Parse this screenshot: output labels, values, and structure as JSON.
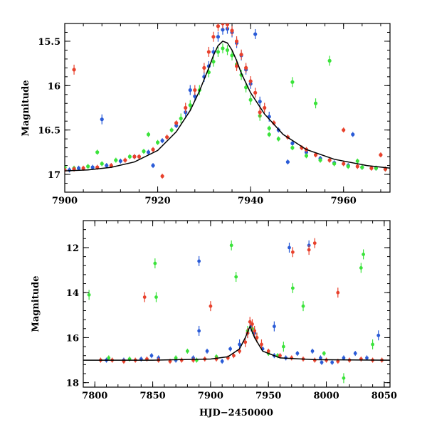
{
  "colors": {
    "B": "#2a5bd7",
    "V": "#3be33b",
    "R": "#e8412c",
    "model": "#000000"
  },
  "chart_data": [
    {
      "type": "scatter",
      "title": "",
      "xlabel": "",
      "ylabel": "Magnitude",
      "xlim": [
        7900,
        7970
      ],
      "ylim": [
        17.2,
        15.3
      ],
      "xticks": [
        7900,
        7920,
        7940,
        7960
      ],
      "xtick_labels": [
        "7900",
        "7920",
        "7940",
        "7960"
      ],
      "yticks": [
        15.5,
        16,
        16.5,
        17
      ],
      "ytick_labels": [
        "15.5",
        "16",
        "16.5",
        "17"
      ],
      "y_inverted": true,
      "grid": false,
      "model": {
        "name": "",
        "x": [
          7900,
          7905,
          7910,
          7915,
          7920,
          7924,
          7927,
          7929,
          7931,
          7932,
          7933,
          7934,
          7935,
          7936,
          7937,
          7938,
          7940,
          7943,
          7947,
          7952,
          7958,
          7965,
          7970
        ],
        "y": [
          16.96,
          16.95,
          16.92,
          16.86,
          16.73,
          16.52,
          16.28,
          16.06,
          15.8,
          15.66,
          15.55,
          15.5,
          15.52,
          15.6,
          15.72,
          15.86,
          16.08,
          16.32,
          16.55,
          16.72,
          16.83,
          16.9,
          16.93
        ]
      },
      "series": [
        {
          "name": "",
          "color": "blue",
          "x": [
            7901,
            7903,
            7906,
            7909,
            7912,
            7915,
            7918,
            7921,
            7924,
            7926,
            7928,
            7930,
            7931,
            7932,
            7933,
            7934,
            7935,
            7936,
            7937,
            7938,
            7939,
            7940,
            7942,
            7944,
            7946,
            7949,
            7952,
            7955,
            7958,
            7961,
            7964,
            7967,
            7969,
            7908,
            7919,
            7927,
            7941,
            7948,
            7962
          ],
          "y": [
            16.95,
            16.93,
            16.92,
            16.9,
            16.85,
            16.8,
            16.75,
            16.62,
            16.45,
            16.3,
            16.12,
            15.9,
            15.78,
            15.62,
            15.45,
            15.37,
            15.36,
            15.4,
            15.52,
            15.66,
            15.82,
            15.98,
            16.18,
            16.35,
            16.5,
            16.65,
            16.75,
            16.82,
            16.87,
            16.9,
            16.92,
            16.93,
            16.94,
            16.38,
            16.9,
            16.05,
            15.42,
            16.86,
            16.55
          ]
        },
        {
          "name": "",
          "color": "green",
          "x": [
            7900,
            7902,
            7905,
            7908,
            7911,
            7914,
            7917,
            7920,
            7923,
            7925,
            7927,
            7929,
            7931,
            7932,
            7933,
            7934,
            7935,
            7936,
            7937,
            7938,
            7939,
            7940,
            7942,
            7944,
            7946,
            7949,
            7952,
            7955,
            7958,
            7961,
            7964,
            7967,
            7969,
            7907,
            7918,
            7944,
            7949,
            7954,
            7957,
            7963
          ],
          "y": [
            16.92,
            16.93,
            16.91,
            16.88,
            16.84,
            16.8,
            16.74,
            16.64,
            16.5,
            16.37,
            16.22,
            16.05,
            15.85,
            15.73,
            15.62,
            15.58,
            15.6,
            15.66,
            15.76,
            15.88,
            16.02,
            16.16,
            16.34,
            16.48,
            16.6,
            16.7,
            16.79,
            16.84,
            16.88,
            16.91,
            16.92,
            16.93,
            16.94,
            16.75,
            16.55,
            16.55,
            15.96,
            16.2,
            15.72,
            16.85
          ]
        },
        {
          "name": "",
          "color": "red",
          "x": [
            7900,
            7902,
            7904,
            7907,
            7910,
            7913,
            7916,
            7919,
            7922,
            7924,
            7926,
            7928,
            7930,
            7931,
            7932,
            7933,
            7934,
            7935,
            7936,
            7937,
            7938,
            7939,
            7940,
            7941,
            7943,
            7945,
            7948,
            7951,
            7954,
            7957,
            7960,
            7963,
            7966,
            7969,
            7902,
            7915,
            7921,
            7937,
            7942,
            7952,
            7960,
            7968
          ],
          "y": [
            16.95,
            16.94,
            16.93,
            16.92,
            16.9,
            16.84,
            16.8,
            16.72,
            16.58,
            16.42,
            16.25,
            16.05,
            15.8,
            15.62,
            15.45,
            15.33,
            15.3,
            15.31,
            15.38,
            15.5,
            15.65,
            15.8,
            15.95,
            16.08,
            16.25,
            16.42,
            16.58,
            16.7,
            16.78,
            16.84,
            16.88,
            16.91,
            16.93,
            16.94,
            15.82,
            16.8,
            17.02,
            15.78,
            16.3,
            16.72,
            16.5,
            16.78
          ]
        }
      ]
    },
    {
      "type": "scatter",
      "title": "",
      "xlabel": "HJD−2450000",
      "ylabel": "Magnitude",
      "xlim": [
        7790,
        8055
      ],
      "ylim": [
        18.2,
        10.8
      ],
      "xticks": [
        7800,
        7850,
        7900,
        7950,
        8000,
        8050
      ],
      "xtick_labels": [
        "7800",
        "7850",
        "7900",
        "7950",
        "8000",
        "8050"
      ],
      "yticks": [
        12,
        14,
        16,
        18
      ],
      "ytick_labels": [
        "12",
        "14",
        "16",
        "18"
      ],
      "y_inverted": true,
      "grid": false,
      "model": {
        "name": "",
        "x": [
          7790,
          7850,
          7900,
          7915,
          7925,
          7930,
          7934,
          7938,
          7945,
          7960,
          7990,
          8055
        ],
        "y": [
          17.0,
          17.0,
          16.95,
          16.85,
          16.5,
          16.0,
          15.5,
          16.0,
          16.6,
          16.9,
          16.98,
          17.0
        ]
      },
      "series": [
        {
          "name": "",
          "color": "blue",
          "x": [
            7810,
            7825,
            7840,
            7855,
            7870,
            7885,
            7890,
            7897,
            7910,
            7917,
            7925,
            7932,
            7935,
            7938,
            7945,
            7955,
            7965,
            7968,
            7975,
            7985,
            7995,
            8005,
            8015,
            8025,
            8035,
            8045,
            7890,
            7955,
            7988,
            7849,
            7996
          ],
          "y": [
            17.0,
            17.0,
            16.95,
            16.9,
            17.0,
            16.9,
            15.7,
            16.6,
            17.05,
            16.5,
            16.3,
            15.8,
            15.5,
            15.8,
            16.5,
            16.8,
            16.9,
            12.0,
            16.7,
            11.9,
            16.9,
            17.1,
            16.9,
            16.7,
            16.9,
            15.9,
            12.6,
            15.5,
            16.6,
            16.8,
            17.1
          ]
        },
        {
          "name": "",
          "color": "green",
          "x": [
            7795,
            7812,
            7830,
            7852,
            7853,
            7870,
            7888,
            7905,
            7918,
            7922,
            7932,
            7936,
            7940,
            7950,
            7958,
            7971,
            7980,
            7998,
            8015,
            8030,
            8032,
            8040,
            7880,
            7963
          ],
          "y": [
            14.1,
            16.9,
            16.95,
            12.7,
            14.2,
            16.9,
            17.0,
            16.85,
            11.9,
            13.3,
            15.7,
            15.6,
            16.0,
            16.7,
            16.8,
            13.8,
            14.6,
            16.7,
            17.8,
            12.9,
            12.3,
            16.3,
            16.6,
            16.4
          ]
        },
        {
          "name": "",
          "color": "red",
          "x": [
            7805,
            7815,
            7825,
            7835,
            7845,
            7855,
            7865,
            7875,
            7885,
            7895,
            7905,
            7915,
            7920,
            7925,
            7930,
            7932,
            7934,
            7936,
            7938,
            7940,
            7944,
            7950,
            7960,
            7970,
            7980,
            7990,
            8000,
            8010,
            8020,
            8030,
            8040,
            8048,
            7843,
            7900,
            7971,
            7985,
            7990,
            8010
          ],
          "y": [
            17.0,
            17.0,
            17.05,
            17.0,
            16.95,
            17.0,
            17.05,
            17.0,
            17.0,
            16.95,
            16.95,
            16.9,
            16.8,
            16.6,
            16.2,
            15.8,
            15.3,
            15.4,
            15.7,
            16.0,
            16.3,
            16.6,
            16.8,
            16.9,
            16.95,
            17.0,
            17.0,
            17.05,
            17.0,
            16.95,
            17.0,
            17.0,
            14.2,
            14.6,
            12.2,
            12.1,
            11.8,
            14.0
          ]
        }
      ]
    }
  ]
}
